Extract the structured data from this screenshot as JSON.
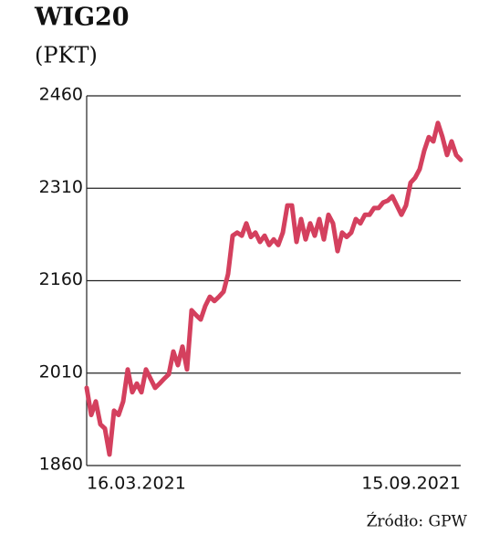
{
  "chart_data": {
    "type": "line",
    "title": "WIG20",
    "subtitle": "(PKT)",
    "source": "Źródło: GPW",
    "categories": [
      "16.03.2021",
      null,
      null,
      null,
      null,
      null,
      null,
      null,
      null,
      null,
      null,
      null,
      null,
      null,
      null,
      null,
      null,
      null,
      null,
      null,
      null,
      null,
      null,
      null,
      null,
      null,
      null,
      null,
      null,
      null,
      null,
      null,
      null,
      null,
      null,
      null,
      null,
      null,
      null,
      null,
      null,
      null,
      null,
      null,
      null,
      null,
      null,
      null,
      null,
      null,
      null,
      null,
      null,
      null,
      null,
      null,
      null,
      null,
      null,
      null,
      null,
      null,
      null,
      null,
      null,
      null,
      null,
      null,
      null,
      null,
      null,
      null,
      null,
      null,
      null,
      null,
      null,
      null,
      null,
      null,
      null,
      null,
      "15.09.2021"
    ],
    "values": [
      1986,
      1942,
      1964,
      1927,
      1920,
      1878,
      1949,
      1942,
      1964,
      2016,
      1979,
      1993,
      1979,
      2016,
      2001,
      1986,
      1993,
      2001,
      2008,
      2045,
      2023,
      2053,
      2016,
      2112,
      2104,
      2097,
      2119,
      2134,
      2127,
      2134,
      2142,
      2171,
      2233,
      2238,
      2233,
      2253,
      2231,
      2238,
      2223,
      2233,
      2218,
      2227,
      2218,
      2238,
      2282,
      2282,
      2223,
      2260,
      2227,
      2253,
      2233,
      2260,
      2227,
      2267,
      2253,
      2208,
      2238,
      2231,
      2238,
      2260,
      2253,
      2267,
      2267,
      2278,
      2278,
      2287,
      2290,
      2297,
      2282,
      2267,
      2282,
      2319,
      2327,
      2341,
      2371,
      2393,
      2386,
      2416,
      2393,
      2364,
      2386,
      2364,
      2356
    ],
    "color": "#d4405e",
    "ylim": [
      1860,
      2460
    ],
    "yticks": [
      1860,
      2010,
      2160,
      2310,
      2460
    ],
    "grid": true
  }
}
